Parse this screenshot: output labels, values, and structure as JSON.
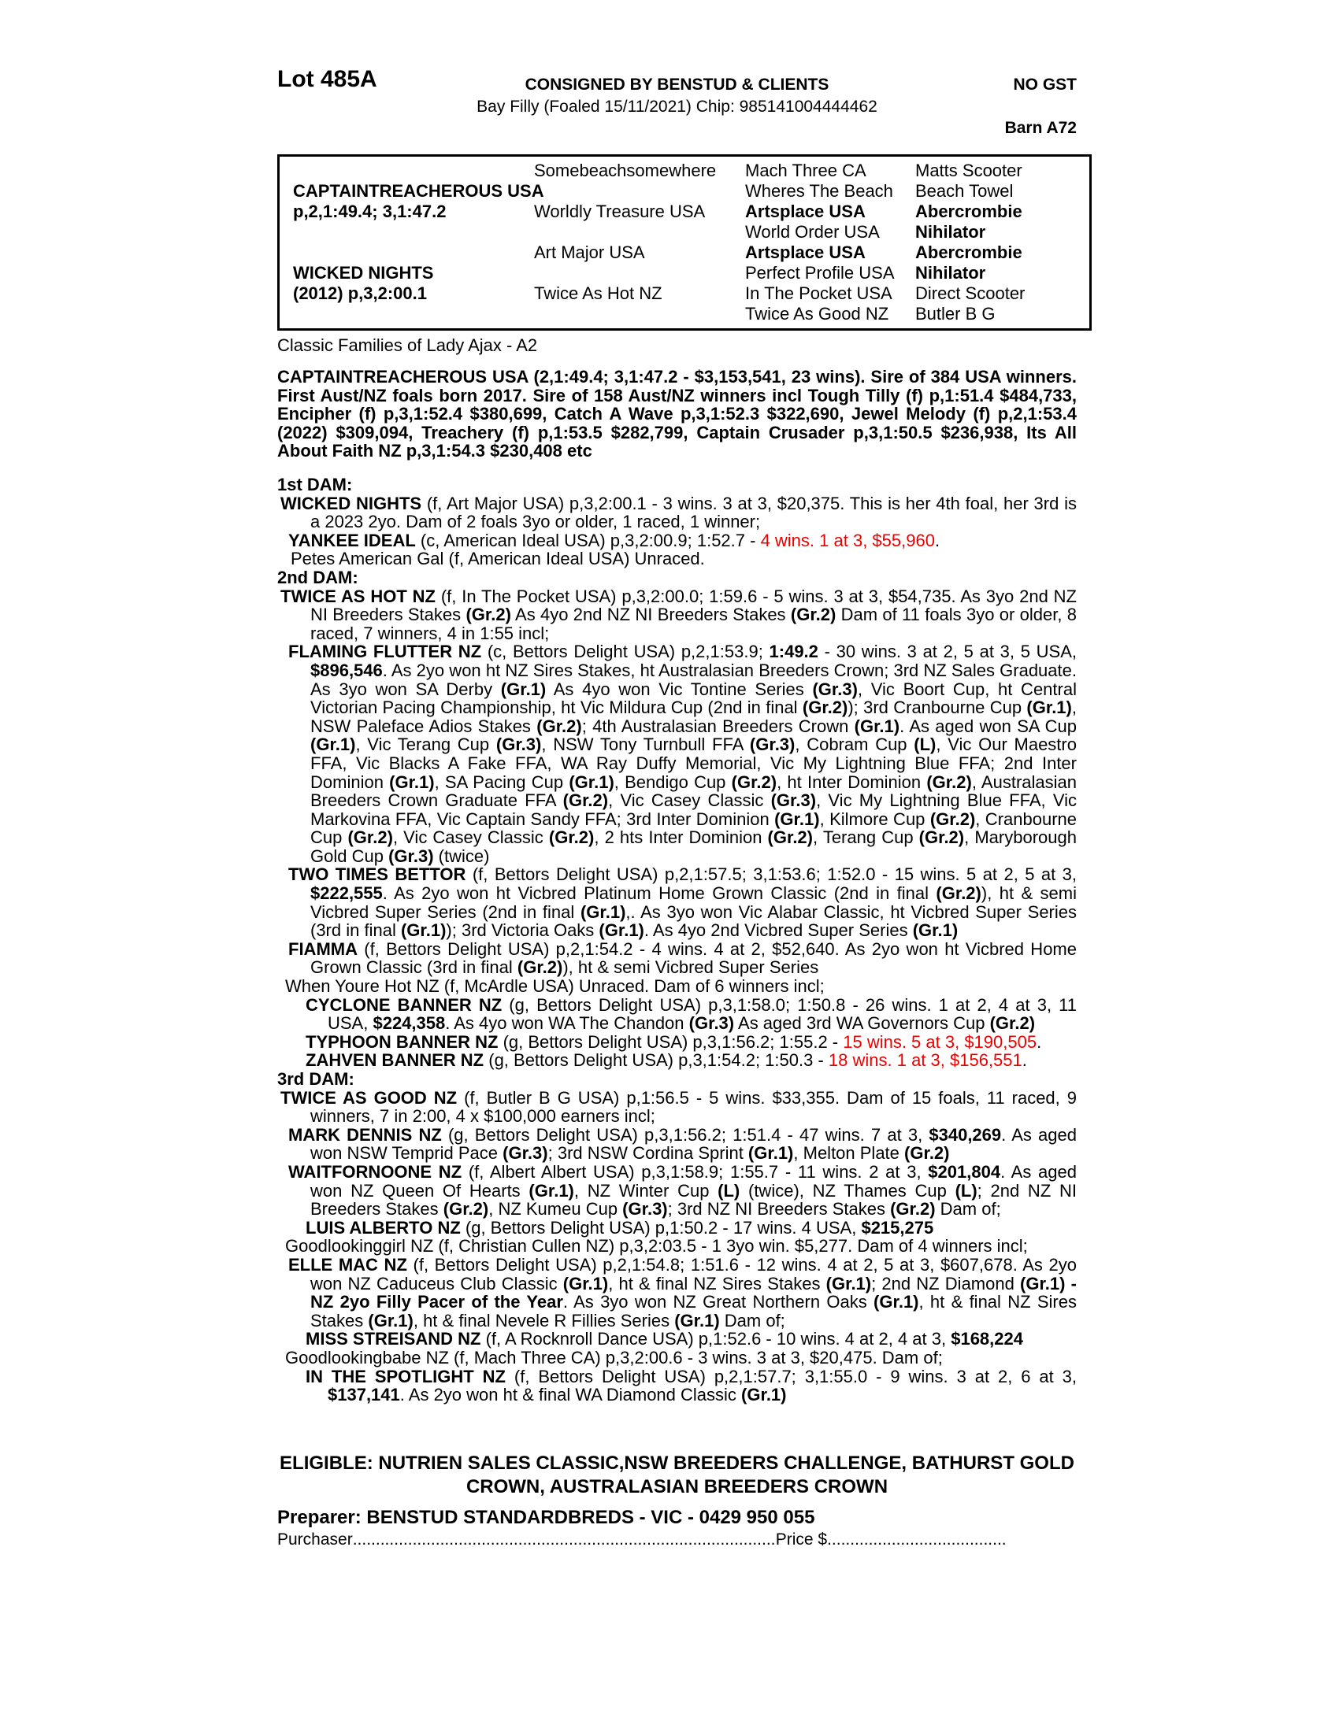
{
  "colors": {
    "red_text": "#ee0000",
    "ink": "#000000",
    "paper": "#ffffff"
  },
  "header": {
    "lot": "Lot 485A",
    "consignor": "CONSIGNED BY BENSTUD & CLIENTS",
    "gst": "NO GST",
    "foal_info": "Bay Filly (Foaled 15/11/2021) Chip: 985141004444462",
    "barn": "Barn A72"
  },
  "pedigree_table": {
    "rows": [
      [
        {
          "t": ""
        },
        {
          "t": "Somebeachsomewhere"
        },
        {
          "t": "Mach Three CA"
        },
        {
          "t": "Matts Scooter"
        }
      ],
      [
        {
          "t": "CAPTAINTREACHEROUS USA",
          "b": 1
        },
        {
          "t": ""
        },
        {
          "t": "Wheres The Beach"
        },
        {
          "t": "Beach Towel"
        }
      ],
      [
        {
          "t": "p,2,1:49.4; 3,1:47.2",
          "b": 1
        },
        {
          "t": "Worldly Treasure USA"
        },
        {
          "t": "Artsplace USA",
          "b": 1
        },
        {
          "t": "Abercrombie",
          "b": 1
        }
      ],
      [
        {
          "t": ""
        },
        {
          "t": ""
        },
        {
          "t": "World Order USA"
        },
        {
          "t": "Nihilator",
          "b": 1
        }
      ],
      [
        {
          "t": ""
        },
        {
          "t": "Art Major USA"
        },
        {
          "t": "Artsplace USA",
          "b": 1
        },
        {
          "t": "Abercrombie",
          "b": 1
        }
      ],
      [
        {
          "t": "WICKED NIGHTS",
          "b": 1
        },
        {
          "t": ""
        },
        {
          "t": "Perfect Profile USA"
        },
        {
          "t": "Nihilator",
          "b": 1
        }
      ],
      [
        {
          "t": "(2012) p,3,2:00.1",
          "b": 1
        },
        {
          "t": "Twice As Hot NZ"
        },
        {
          "t": "In The Pocket USA"
        },
        {
          "t": "Direct Scooter"
        }
      ],
      [
        {
          "t": ""
        },
        {
          "t": ""
        },
        {
          "t": "Twice As Good NZ"
        },
        {
          "t": "Butler B G"
        }
      ]
    ]
  },
  "family_line": "Classic Families of Lady Ajax - A2",
  "sire_summary": "CAPTAINTREACHEROUS USA (2,1:49.4; 3,1:47.2 - $3,153,541, 23 wins). Sire of 384 USA winners. First Aust/NZ foals born 2017. Sire of 158 Aust/NZ winners incl Tough Tilly (f) p,1:51.4 $484,733, Encipher (f) p,3,1:52.4 $380,699, Catch A Wave p,3,1:52.3 $322,690, Jewel Melody (f) p,2,1:53.4 (2022) $309,094, Treachery (f) p,1:53.5 $282,799, Captain Crusader p,3,1:50.5 $236,938, Its All About Faith NZ p,3,1:54.3 $230,408 etc",
  "dam_sections": [
    {
      "heading": "1st DAM:",
      "entries": [
        {
          "cls": "e1",
          "seg": [
            {
              "t": "WICKED NIGHTS",
              "b": 1
            },
            {
              "t": " (f, Art Major USA) p,3,2:00.1 - 3 wins. 3 at 3, $20,375. This is her 4th foal, her 3rd is a 2023 2yo. Dam of 2 foals 3yo or older, 1 raced, 1 winner;"
            }
          ]
        },
        {
          "cls": "e2",
          "seg": [
            {
              "t": "YANKEE IDEAL",
              "b": 1
            },
            {
              "t": " (c, American Ideal USA) p,3,2:00.9; 1:52.7 - "
            },
            {
              "t": "4 wins. 1 at 3, $55,960",
              "r": 1
            },
            {
              "t": "."
            }
          ]
        },
        {
          "cls": "e2p",
          "seg": [
            {
              "t": "Petes American Gal (f, American Ideal USA) Unraced."
            }
          ]
        }
      ]
    },
    {
      "heading": "2nd DAM:",
      "entries": [
        {
          "cls": "e1",
          "seg": [
            {
              "t": "TWICE AS HOT NZ",
              "b": 1
            },
            {
              "t": " (f, In The Pocket USA) p,3,2:00.0; 1:59.6 - 5 wins. 3 at 3, $54,735. As 3yo 2nd NZ NI Breeders Stakes "
            },
            {
              "t": "(Gr.2)",
              "b": 1
            },
            {
              "t": " As 4yo 2nd NZ NI Breeders Stakes "
            },
            {
              "t": "(Gr.2)",
              "b": 1
            },
            {
              "t": " Dam of 11 foals 3yo or older, 8 raced, 7 winners, 4 in 1:55 incl;"
            }
          ]
        },
        {
          "cls": "e2",
          "seg": [
            {
              "t": "FLAMING FLUTTER NZ",
              "b": 1
            },
            {
              "t": " (c, Bettors Delight USA) p,2,1:53.9; "
            },
            {
              "t": "1:49.2",
              "b": 1
            },
            {
              "t": " - 30 wins. 3 at 2, 5 at 3, 5 USA, "
            },
            {
              "t": "$896,546",
              "b": 1
            },
            {
              "t": ". As 2yo won ht NZ Sires Stakes, ht Australasian Breeders Crown; 3rd NZ Sales Graduate. As 3yo won SA Derby "
            },
            {
              "t": "(Gr.1)",
              "b": 1
            },
            {
              "t": " As 4yo won Vic Tontine Series "
            },
            {
              "t": "(Gr.3)",
              "b": 1
            },
            {
              "t": ", Vic Boort Cup, ht Central Victorian Pacing Championship, ht Vic Mildura Cup (2nd in final "
            },
            {
              "t": "(Gr.2)",
              "b": 1
            },
            {
              "t": "); 3rd Cranbourne Cup "
            },
            {
              "t": "(Gr.1)",
              "b": 1
            },
            {
              "t": ", NSW Paleface Adios Stakes "
            },
            {
              "t": "(Gr.2)",
              "b": 1
            },
            {
              "t": "; 4th Australasian Breeders Crown "
            },
            {
              "t": "(Gr.1)",
              "b": 1
            },
            {
              "t": ". As aged won SA Cup "
            },
            {
              "t": "(Gr.1)",
              "b": 1
            },
            {
              "t": ", Vic Terang Cup "
            },
            {
              "t": "(Gr.3)",
              "b": 1
            },
            {
              "t": ", NSW Tony Turnbull FFA "
            },
            {
              "t": "(Gr.3)",
              "b": 1
            },
            {
              "t": ", Cobram Cup "
            },
            {
              "t": "(L)",
              "b": 1
            },
            {
              "t": ", Vic Our Maestro FFA, Vic Blacks A Fake FFA, WA Ray Duffy Memorial, Vic My Lightning Blue FFA; 2nd Inter Dominion "
            },
            {
              "t": "(Gr.1)",
              "b": 1
            },
            {
              "t": ", SA Pacing Cup "
            },
            {
              "t": "(Gr.1)",
              "b": 1
            },
            {
              "t": ", Bendigo Cup "
            },
            {
              "t": "(Gr.2)",
              "b": 1
            },
            {
              "t": ", ht Inter Dominion "
            },
            {
              "t": "(Gr.2)",
              "b": 1
            },
            {
              "t": ", Australasian Breeders Crown Graduate FFA "
            },
            {
              "t": "(Gr.2)",
              "b": 1
            },
            {
              "t": ", Vic Casey Classic "
            },
            {
              "t": "(Gr.3)",
              "b": 1
            },
            {
              "t": ", Vic My Lightning Blue FFA, Vic Markovina FFA, Vic Captain Sandy FFA; 3rd Inter Dominion "
            },
            {
              "t": "(Gr.1)",
              "b": 1
            },
            {
              "t": ", Kilmore Cup "
            },
            {
              "t": "(Gr.2)",
              "b": 1
            },
            {
              "t": ", Cranbourne Cup "
            },
            {
              "t": "(Gr.2)",
              "b": 1
            },
            {
              "t": ", Vic Casey Classic "
            },
            {
              "t": "(Gr.2)",
              "b": 1
            },
            {
              "t": ", 2 hts Inter Dominion "
            },
            {
              "t": "(Gr.2)",
              "b": 1
            },
            {
              "t": ", Terang Cup "
            },
            {
              "t": "(Gr.2)",
              "b": 1
            },
            {
              "t": ", Maryborough Gold Cup "
            },
            {
              "t": "(Gr.3)",
              "b": 1
            },
            {
              "t": " (twice)"
            }
          ]
        },
        {
          "cls": "e2",
          "seg": [
            {
              "t": "TWO TIMES BETTOR",
              "b": 1
            },
            {
              "t": " (f, Bettors Delight USA) p,2,1:57.5; 3,1:53.6; 1:52.0 - 15 wins. 5 at 2, 5 at 3, "
            },
            {
              "t": "$222,555",
              "b": 1
            },
            {
              "t": ". As 2yo won ht Vicbred Platinum Home Grown Classic (2nd in final "
            },
            {
              "t": "(Gr.2)",
              "b": 1
            },
            {
              "t": "), ht & semi Vicbred Super Series (2nd in final "
            },
            {
              "t": "(Gr.1)",
              "b": 1
            },
            {
              "t": ",. As 3yo won Vic Alabar Classic, ht Vicbred Super Series (3rd in final "
            },
            {
              "t": "(Gr.1)",
              "b": 1
            },
            {
              "t": "); 3rd Victoria Oaks "
            },
            {
              "t": "(Gr.1)",
              "b": 1
            },
            {
              "t": ". As 4yo 2nd Vicbred Super Series "
            },
            {
              "t": "(Gr.1)",
              "b": 1
            }
          ]
        },
        {
          "cls": "e2",
          "seg": [
            {
              "t": "FIAMMA",
              "b": 1
            },
            {
              "t": " (f, Bettors Delight USA) p,2,1:54.2 - 4 wins. 4 at 2, $52,640. As 2yo won ht Vicbred Home Grown Classic (3rd in final "
            },
            {
              "t": "(Gr.2)",
              "b": 1
            },
            {
              "t": "), ht & semi Vicbred Super Series"
            }
          ]
        },
        {
          "cls": "e1p",
          "seg": [
            {
              "t": "When Youre Hot NZ (f, McArdle USA) Unraced. Dam of 6 winners incl;"
            }
          ]
        },
        {
          "cls": "e3",
          "seg": [
            {
              "t": "CYCLONE BANNER NZ",
              "b": 1
            },
            {
              "t": " (g, Bettors Delight USA) p,3,1:58.0; 1:50.8 - 26 wins. 1 at 2, 4 at 3, 11 USA, "
            },
            {
              "t": "$224,358",
              "b": 1
            },
            {
              "t": ". As 4yo won WA The Chandon "
            },
            {
              "t": "(Gr.3)",
              "b": 1
            },
            {
              "t": " As aged 3rd WA Governors Cup "
            },
            {
              "t": "(Gr.2)",
              "b": 1
            }
          ]
        },
        {
          "cls": "e3",
          "seg": [
            {
              "t": "TYPHOON BANNER NZ",
              "b": 1
            },
            {
              "t": " (g, Bettors Delight USA) p,3,1:56.2; 1:55.2 - "
            },
            {
              "t": "15 wins. 5 at 3, $190,505",
              "r": 1
            },
            {
              "t": "."
            }
          ]
        },
        {
          "cls": "e3",
          "seg": [
            {
              "t": "ZAHVEN BANNER NZ",
              "b": 1
            },
            {
              "t": " (g, Bettors Delight USA) p,3,1:54.2; 1:50.3 - "
            },
            {
              "t": "18 wins. 1 at 3, $156,551",
              "r": 1
            },
            {
              "t": "."
            }
          ]
        }
      ]
    },
    {
      "heading": "3rd DAM:",
      "entries": [
        {
          "cls": "e1",
          "seg": [
            {
              "t": "TWICE AS GOOD NZ",
              "b": 1
            },
            {
              "t": " (f, Butler B G USA) p,1:56.5 - 5 wins. $33,355. Dam of 15 foals, 11 raced, 9 winners, 7 in 2:00, 4 x $100,000 earners incl;"
            }
          ]
        },
        {
          "cls": "e2",
          "seg": [
            {
              "t": "MARK DENNIS NZ",
              "b": 1
            },
            {
              "t": " (g, Bettors Delight USA) p,3,1:56.2; 1:51.4 - 47 wins. 7 at 3, "
            },
            {
              "t": "$340,269",
              "b": 1
            },
            {
              "t": ". As aged won NSW Temprid Pace "
            },
            {
              "t": "(Gr.3)",
              "b": 1
            },
            {
              "t": "; 3rd NSW Cordina Sprint "
            },
            {
              "t": "(Gr.1)",
              "b": 1
            },
            {
              "t": ", Melton Plate "
            },
            {
              "t": "(Gr.2)",
              "b": 1
            }
          ]
        },
        {
          "cls": "e2",
          "seg": [
            {
              "t": "WAITFORNOONE NZ",
              "b": 1
            },
            {
              "t": " (f, Albert Albert USA) p,3,1:58.9; 1:55.7 - 11 wins. 2 at 3, "
            },
            {
              "t": "$201,804",
              "b": 1
            },
            {
              "t": ". As aged won NZ Queen Of Hearts "
            },
            {
              "t": "(Gr.1)",
              "b": 1
            },
            {
              "t": ", NZ Winter Cup "
            },
            {
              "t": "(L)",
              "b": 1
            },
            {
              "t": " (twice), NZ Thames Cup "
            },
            {
              "t": "(L)",
              "b": 1
            },
            {
              "t": "; 2nd NZ NI Breeders Stakes "
            },
            {
              "t": "(Gr.2)",
              "b": 1
            },
            {
              "t": ", NZ Kumeu Cup "
            },
            {
              "t": "(Gr.3)",
              "b": 1
            },
            {
              "t": "; 3rd NZ NI Breeders Stakes "
            },
            {
              "t": "(Gr.2)",
              "b": 1
            },
            {
              "t": " Dam of;"
            }
          ]
        },
        {
          "cls": "e3",
          "seg": [
            {
              "t": "LUIS ALBERTO NZ",
              "b": 1
            },
            {
              "t": " (g, Bettors Delight USA) p,1:50.2 - 17 wins. 4 USA, "
            },
            {
              "t": "$215,275",
              "b": 1
            }
          ]
        },
        {
          "cls": "e1p",
          "seg": [
            {
              "t": "Goodlookinggirl NZ (f, Christian Cullen NZ) p,3,2:03.5 - 1 3yo win. $5,277. Dam of 4 winners incl;"
            }
          ]
        },
        {
          "cls": "e2",
          "seg": [
            {
              "t": "ELLE MAC NZ",
              "b": 1
            },
            {
              "t": " (f, Bettors Delight USA) p,2,1:54.8; 1:51.6 - 12 wins. 4 at 2, 5 at 3, $607,678. As 2yo won NZ Caduceus Club Classic "
            },
            {
              "t": "(Gr.1)",
              "b": 1
            },
            {
              "t": ", ht & final NZ Sires Stakes "
            },
            {
              "t": "(Gr.1)",
              "b": 1
            },
            {
              "t": "; 2nd NZ Diamond "
            },
            {
              "t": "(Gr.1)",
              "b": 1
            },
            {
              "t": " - NZ 2yo Filly Pacer of the Year",
              "b": 1
            },
            {
              "t": ". As 3yo won NZ Great Northern Oaks "
            },
            {
              "t": "(Gr.1)",
              "b": 1
            },
            {
              "t": ", ht & final NZ Sires Stakes "
            },
            {
              "t": "(Gr.1)",
              "b": 1
            },
            {
              "t": ", ht & final Nevele R Fillies Series "
            },
            {
              "t": "(Gr.1)",
              "b": 1
            },
            {
              "t": " Dam of;"
            }
          ]
        },
        {
          "cls": "e3",
          "seg": [
            {
              "t": "MISS STREISAND NZ",
              "b": 1
            },
            {
              "t": " (f, A Rocknroll Dance USA) p,1:52.6 - 10 wins. 4 at 2, 4 at 3, "
            },
            {
              "t": "$168,224",
              "b": 1
            }
          ]
        },
        {
          "cls": "e1p",
          "seg": [
            {
              "t": "Goodlookingbabe NZ (f, Mach Three CA) p,3,2:00.6 - 3 wins. 3 at 3, $20,475. Dam of;"
            }
          ]
        },
        {
          "cls": "e3",
          "seg": [
            {
              "t": "IN THE SPOTLIGHT NZ",
              "b": 1
            },
            {
              "t": " (f, Bettors Delight USA) p,2,1:57.7; 3,1:55.0 - 9 wins. 3 at 2, 6 at 3, "
            },
            {
              "t": "$137,141",
              "b": 1
            },
            {
              "t": ". As 2yo won ht & final WA Diamond Classic "
            },
            {
              "t": "(Gr.1)",
              "b": 1
            }
          ]
        }
      ]
    }
  ],
  "eligible": "ELIGIBLE: NUTRIEN SALES CLASSIC,NSW BREEDERS CHALLENGE, BATHURST GOLD CROWN, AUSTRALASIAN BREEDERS CROWN",
  "preparer": "Preparer: BENSTUD STANDARDBREDS - VIC - 0429 950 055",
  "signature_line": {
    "purchaser_label": "Purchaser",
    "dots1": "..............................................................................................................................",
    "price_label": "Price $",
    "dots2": ".............................................................."
  }
}
